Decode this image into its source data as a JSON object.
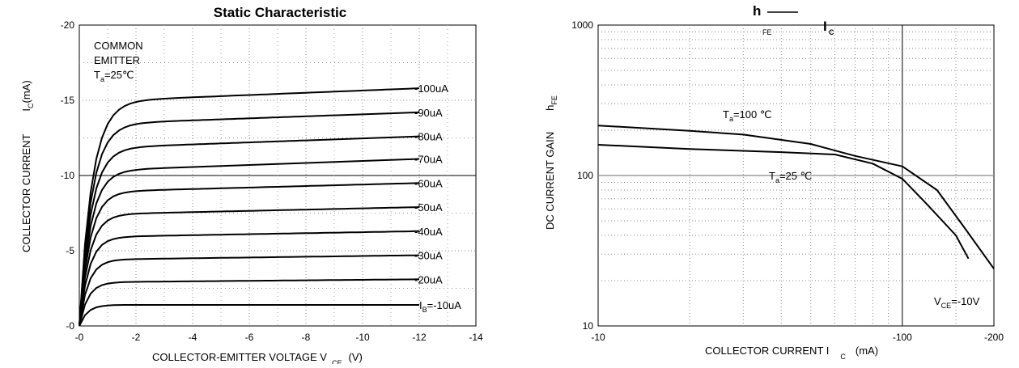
{
  "chart_data": [
    {
      "type": "line",
      "title": "Static Characteristic",
      "xlabel": "COLLECTOR-EMITTER VOLTAGE V",
      "xlabel_sub": "CE",
      "xlabel_unit": "(V)",
      "ylabel": "COLLECTOR CURRENT",
      "ylabel_symbol": "I",
      "ylabel_sub": "C",
      "ylabel_unit": "(mA)",
      "xlim": [
        0,
        -14
      ],
      "ylim": [
        0,
        -20
      ],
      "x_ticks": [
        "-0",
        "-2",
        "-4",
        "-6",
        "-8",
        "-10",
        "-12",
        "-14"
      ],
      "x_tick_values": [
        0,
        -2,
        -4,
        -6,
        -8,
        -10,
        -12,
        -14
      ],
      "y_ticks": [
        "-0",
        "-5",
        "-10",
        "-15",
        "-20"
      ],
      "y_tick_values": [
        0,
        -5,
        -10,
        -15,
        -20
      ],
      "grid": true,
      "annotation_lines": [
        "COMMON",
        "EMITTER"
      ],
      "annotation_temp": {
        "symbol": "T",
        "sub": "a",
        "rest": "=25℃"
      },
      "ib_prefix": "I",
      "ib_prefix_sub": "B",
      "series": [
        {
          "name": "=-10uA",
          "y_sat": -1.4,
          "y_end": -1.4
        },
        {
          "name": "-20uA",
          "y_sat": -2.9,
          "y_end": -3.1
        },
        {
          "name": "-30uA",
          "y_sat": -4.4,
          "y_end": -4.7
        },
        {
          "name": "-40uA",
          "y_sat": -5.9,
          "y_end": -6.3
        },
        {
          "name": "-50uA",
          "y_sat": -7.4,
          "y_end": -7.9
        },
        {
          "name": "-60uA",
          "y_sat": -8.9,
          "y_end": -9.5
        },
        {
          "name": "-70uA",
          "y_sat": -10.3,
          "y_end": -11.1
        },
        {
          "name": "-80uA",
          "y_sat": -11.8,
          "y_end": -12.6
        },
        {
          "name": "-90uA",
          "y_sat": -13.4,
          "y_end": -14.2
        },
        {
          "name": "-100uA",
          "y_sat": -14.9,
          "y_end": -15.8
        }
      ]
    },
    {
      "type": "line",
      "title_main": "h",
      "title_sub": "FE",
      "title_dash": "—",
      "title_right": "I",
      "title_right_sub": "C",
      "xlabel": "COLLECTOR CURRENT I",
      "xlabel_sub": "C",
      "xlabel_unit": "(mA)",
      "ylabel": "DC CURRENT GAIN",
      "ylabel_symbol": "h",
      "ylabel_sub": "FE",
      "x_scale": "log",
      "y_scale": "log",
      "xlim": [
        -10,
        -200
      ],
      "ylim": [
        10,
        1000
      ],
      "x_ticks": [
        "-10",
        "-100",
        "-200"
      ],
      "y_ticks": [
        "10",
        "100",
        "1000"
      ],
      "grid": true,
      "condition": {
        "symbol": "V",
        "sub": "CE",
        "rest": "=-10V"
      },
      "series": [
        {
          "name": "=100 ℃",
          "label_symbol": "T",
          "label_sub": "a",
          "points": [
            [
              -10,
              215
            ],
            [
              -20,
              198
            ],
            [
              -30,
              187
            ],
            [
              -50,
              162
            ],
            [
              -70,
              135
            ],
            [
              -100,
              115
            ],
            [
              -130,
              80
            ],
            [
              -160,
              45
            ],
            [
              -200,
              24
            ]
          ]
        },
        {
          "name": "=25 ℃",
          "label_symbol": "T",
          "label_sub": "a",
          "points": [
            [
              -10,
              160
            ],
            [
              -20,
              150
            ],
            [
              -40,
              143
            ],
            [
              -60,
              138
            ],
            [
              -80,
              120
            ],
            [
              -100,
              95
            ],
            [
              -120,
              65
            ],
            [
              -150,
              40
            ],
            [
              -165,
              28
            ]
          ]
        }
      ]
    }
  ]
}
